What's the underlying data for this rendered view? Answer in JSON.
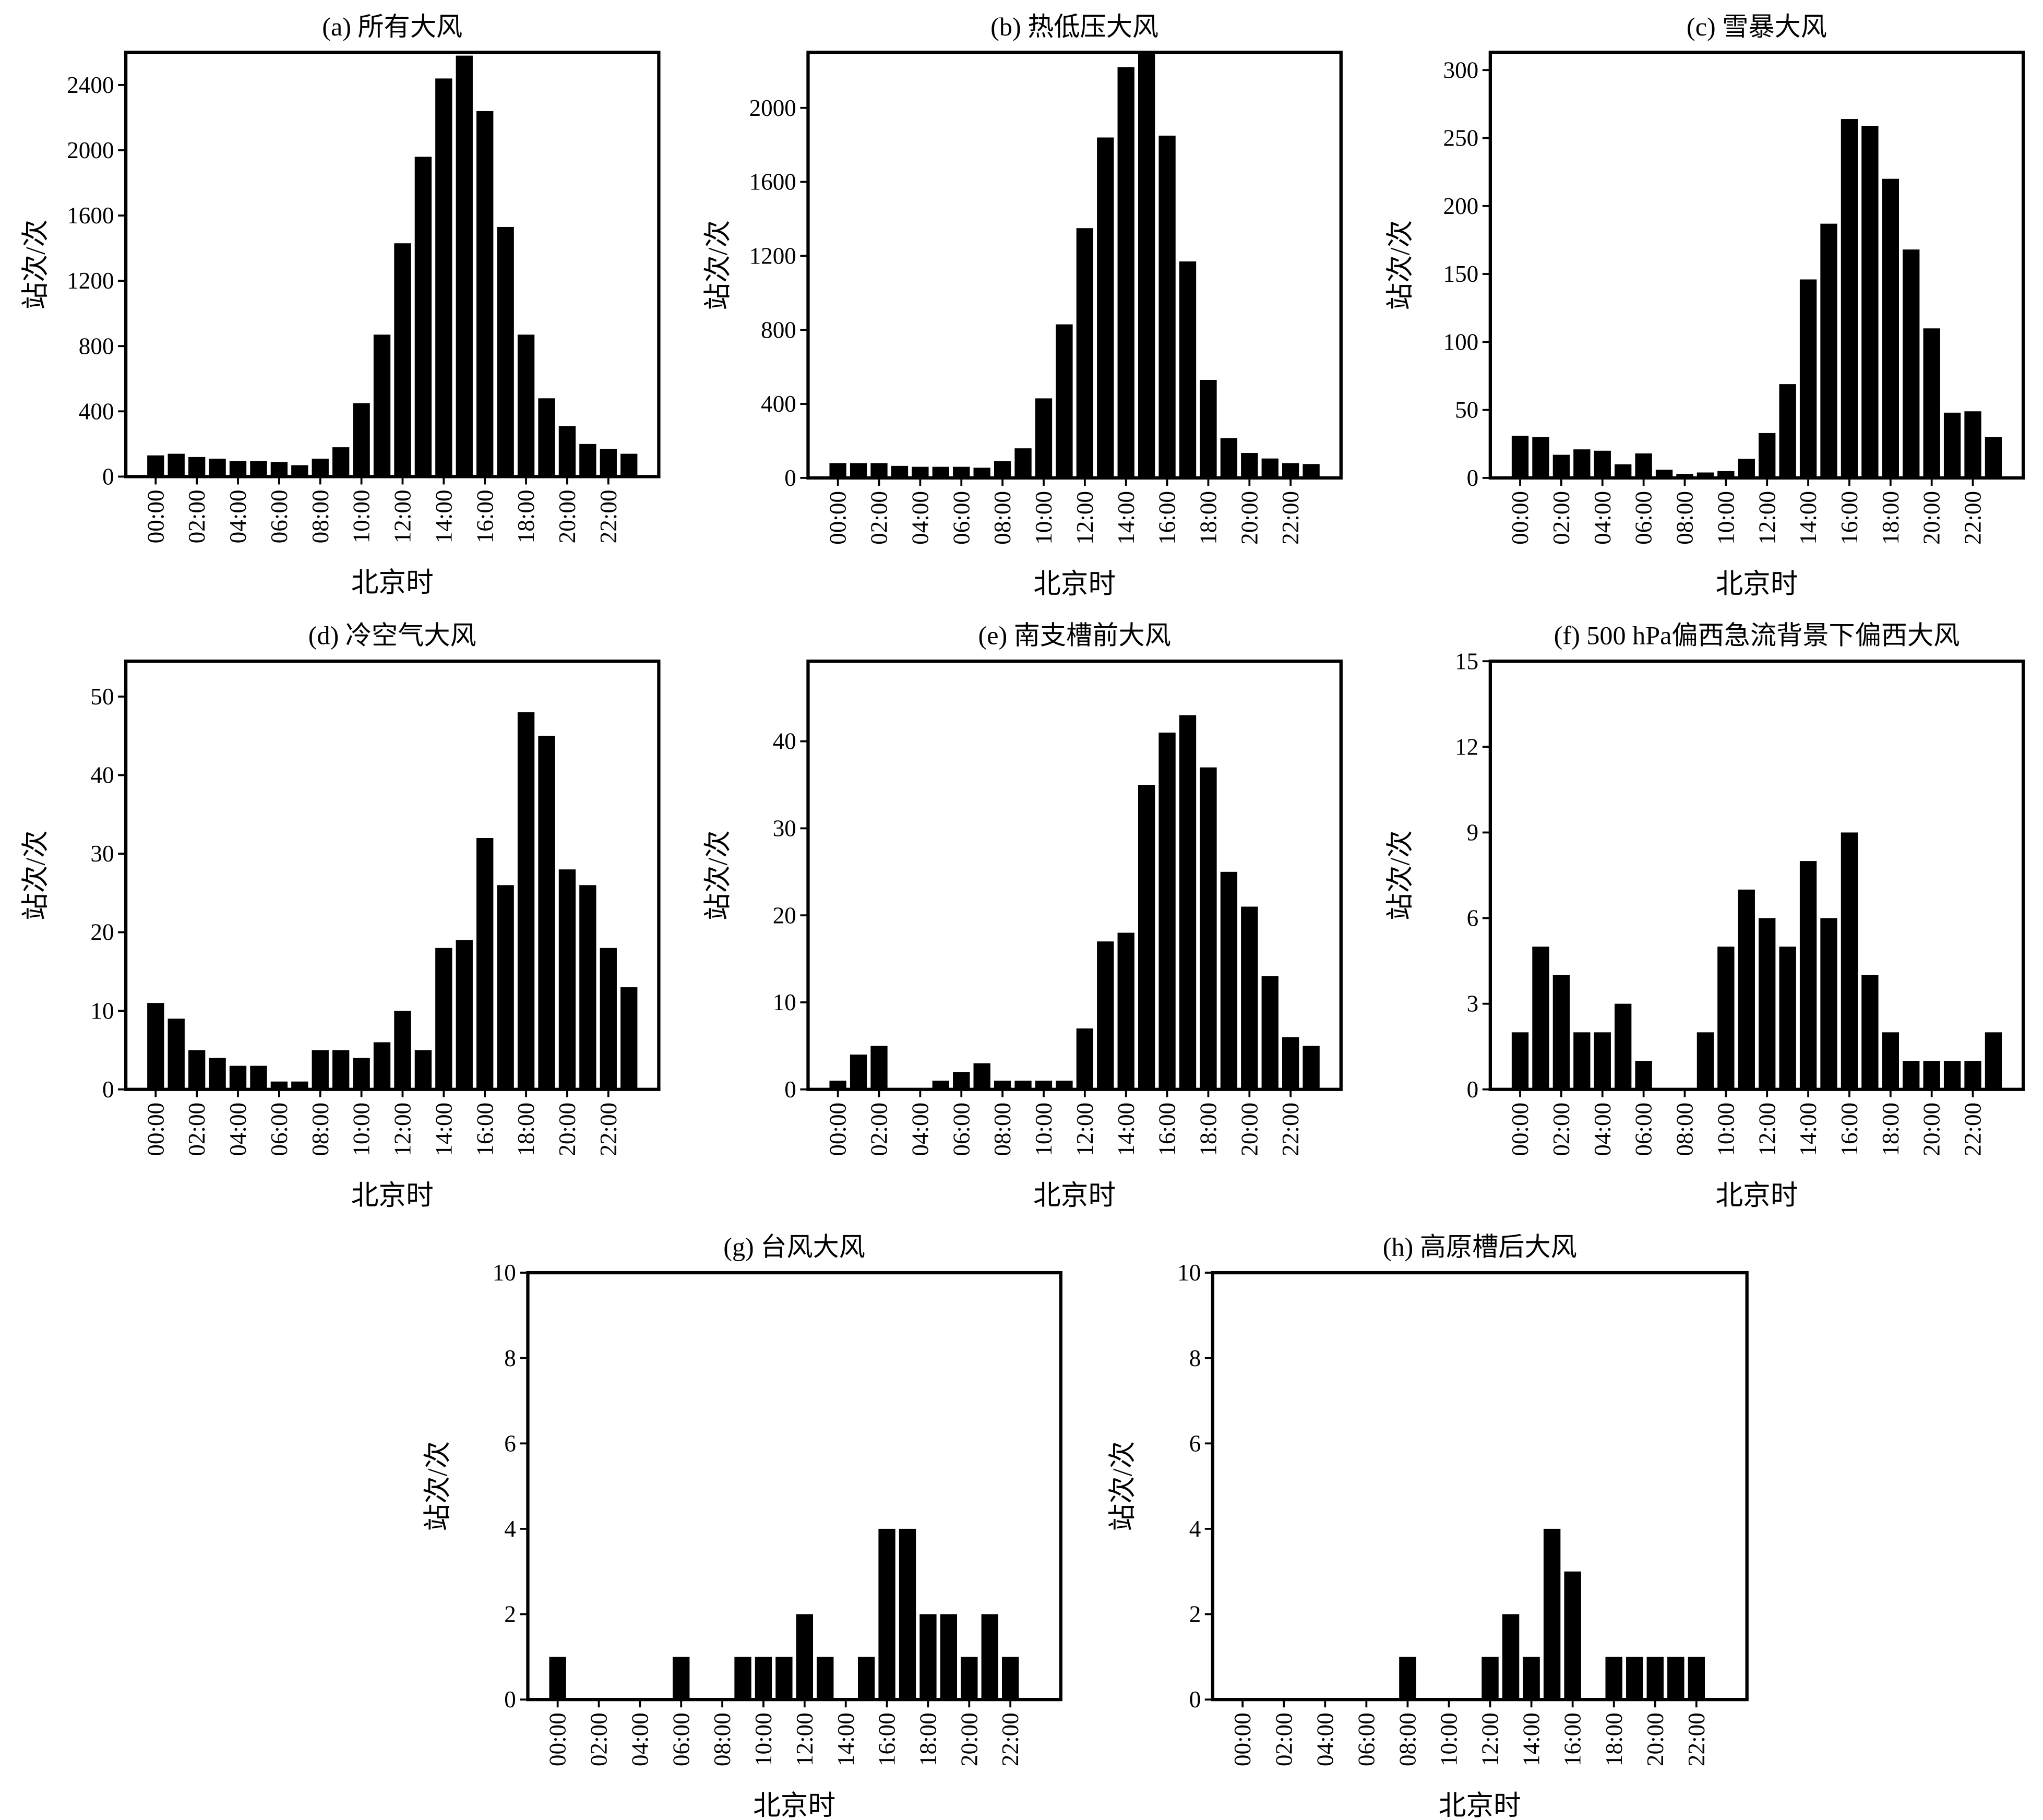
{
  "chart_data": [
    {
      "type": "bar",
      "title": "(a) 所有大风",
      "xlabel": "北京时",
      "ylabel": "站次/次",
      "color": "#000000",
      "categories": [
        "00:00",
        null,
        "02:00",
        null,
        "04:00",
        null,
        "06:00",
        null,
        "08:00",
        null,
        "10:00",
        null,
        "12:00",
        null,
        "14:00",
        null,
        "16:00",
        null,
        "18:00",
        null,
        "20:00",
        null,
        "22:00",
        null
      ],
      "values": [
        130,
        140,
        120,
        110,
        95,
        95,
        90,
        70,
        110,
        180,
        450,
        870,
        1430,
        1960,
        2440,
        2580,
        2240,
        1530,
        870,
        480,
        310,
        200,
        170,
        140
      ],
      "ylim": [
        0,
        2600
      ],
      "yticks": [
        0,
        400,
        800,
        1200,
        1600,
        2000,
        2400
      ]
    },
    {
      "type": "bar",
      "title": "(b) 热低压大风",
      "xlabel": "北京时",
      "ylabel": "站次/次",
      "color": "#000000",
      "categories": [
        "00:00",
        null,
        "02:00",
        null,
        "04:00",
        null,
        "06:00",
        null,
        "08:00",
        null,
        "10:00",
        null,
        "12:00",
        null,
        "14:00",
        null,
        "16:00",
        null,
        "18:00",
        null,
        "20:00",
        null,
        "22:00",
        null
      ],
      "values": [
        80,
        80,
        80,
        65,
        60,
        60,
        60,
        55,
        90,
        160,
        430,
        830,
        1350,
        1840,
        2220,
        2290,
        1850,
        1170,
        530,
        215,
        135,
        105,
        80,
        75
      ],
      "ylim": [
        0,
        2300
      ],
      "yticks": [
        0,
        400,
        800,
        1200,
        1600,
        2000
      ]
    },
    {
      "type": "bar",
      "title": "(c) 雪暴大风",
      "xlabel": "北京时",
      "ylabel": "站次/次",
      "color": "#000000",
      "categories": [
        "00:00",
        null,
        "02:00",
        null,
        "04:00",
        null,
        "06:00",
        null,
        "08:00",
        null,
        "10:00",
        null,
        "12:00",
        null,
        "14:00",
        null,
        "16:00",
        null,
        "18:00",
        null,
        "20:00",
        null,
        "22:00",
        null
      ],
      "values": [
        31,
        30,
        17,
        21,
        20,
        10,
        18,
        6,
        3,
        4,
        5,
        14,
        33,
        69,
        146,
        187,
        264,
        259,
        220,
        168,
        110,
        48,
        49,
        30
      ],
      "ylim": [
        0,
        313
      ],
      "yticks": [
        0,
        50,
        100,
        150,
        200,
        250,
        300
      ]
    },
    {
      "type": "bar",
      "title": "(d) 冷空气大风",
      "xlabel": "北京时",
      "ylabel": "站次/次",
      "color": "#000000",
      "categories": [
        "00:00",
        null,
        "02:00",
        null,
        "04:00",
        null,
        "06:00",
        null,
        "08:00",
        null,
        "10:00",
        null,
        "12:00",
        null,
        "14:00",
        null,
        "16:00",
        null,
        "18:00",
        null,
        "20:00",
        null,
        "22:00",
        null
      ],
      "values": [
        11,
        9,
        5,
        4,
        3,
        3,
        1,
        1,
        5,
        5,
        4,
        6,
        10,
        5,
        18,
        19,
        32,
        26,
        48,
        45,
        28,
        26,
        18,
        13
      ],
      "ylim": [
        0,
        54.5
      ],
      "yticks": [
        0,
        10,
        20,
        30,
        40,
        50
      ]
    },
    {
      "type": "bar",
      "title": "(e) 南支槽前大风",
      "xlabel": "北京时",
      "ylabel": "站次/次",
      "color": "#000000",
      "categories": [
        "00:00",
        null,
        "02:00",
        null,
        "04:00",
        null,
        "06:00",
        null,
        "08:00",
        null,
        "10:00",
        null,
        "12:00",
        null,
        "14:00",
        null,
        "16:00",
        null,
        "18:00",
        null,
        "20:00",
        null,
        "22:00",
        null
      ],
      "values": [
        1,
        4,
        5,
        0,
        0,
        1,
        2,
        3,
        1,
        1,
        1,
        1,
        7,
        17,
        18,
        35,
        41,
        43,
        37,
        25,
        21,
        13,
        6,
        5
      ],
      "ylim": [
        0,
        49.2
      ],
      "yticks": [
        0,
        10,
        20,
        30,
        40
      ]
    },
    {
      "type": "bar",
      "title": "(f) 500 hPa偏西急流背景下偏西大风",
      "xlabel": "北京时",
      "ylabel": "站次/次",
      "color": "#000000",
      "categories": [
        "00:00",
        null,
        "02:00",
        null,
        "04:00",
        null,
        "06:00",
        null,
        "08:00",
        null,
        "10:00",
        null,
        "12:00",
        null,
        "14:00",
        null,
        "16:00",
        null,
        "18:00",
        null,
        "20:00",
        null,
        "22:00",
        null
      ],
      "values": [
        2,
        5,
        4,
        2,
        2,
        3,
        1,
        0,
        0,
        2,
        5,
        7,
        6,
        5,
        8,
        6,
        9,
        4,
        2,
        1,
        1,
        1,
        1,
        2
      ],
      "ylim": [
        0,
        15
      ],
      "yticks": [
        0,
        3,
        6,
        9,
        12,
        15
      ]
    },
    {
      "type": "bar",
      "title": "(g) 台风大风",
      "xlabel": "北京时",
      "ylabel": "站次/次",
      "color": "#000000",
      "categories": [
        "00:00",
        null,
        "02:00",
        null,
        "04:00",
        null,
        "06:00",
        null,
        "08:00",
        null,
        "10:00",
        null,
        "12:00",
        null,
        "14:00",
        null,
        "16:00",
        null,
        "18:00",
        null,
        "20:00",
        null,
        "22:00",
        null
      ],
      "values": [
        1,
        0,
        0,
        0,
        0,
        0,
        1,
        0,
        0,
        1,
        1,
        1,
        2,
        1,
        0,
        1,
        4,
        4,
        2,
        2,
        1,
        2,
        1,
        0
      ],
      "ylim": [
        0,
        10
      ],
      "yticks": [
        0,
        2,
        4,
        6,
        8,
        10
      ]
    },
    {
      "type": "bar",
      "title": "(h) 高原槽后大风",
      "xlabel": "北京时",
      "ylabel": "站次/次",
      "color": "#000000",
      "categories": [
        "00:00",
        null,
        "02:00",
        null,
        "04:00",
        null,
        "06:00",
        null,
        "08:00",
        null,
        "10:00",
        null,
        "12:00",
        null,
        "14:00",
        null,
        "16:00",
        null,
        "18:00",
        null,
        "20:00",
        null,
        "22:00",
        null
      ],
      "values": [
        0,
        0,
        0,
        0,
        0,
        0,
        0,
        0,
        1,
        0,
        0,
        0,
        1,
        2,
        1,
        4,
        3,
        0,
        1,
        1,
        1,
        1,
        1,
        0
      ],
      "ylim": [
        0,
        10
      ],
      "yticks": [
        0,
        2,
        4,
        6,
        8,
        10
      ]
    }
  ]
}
